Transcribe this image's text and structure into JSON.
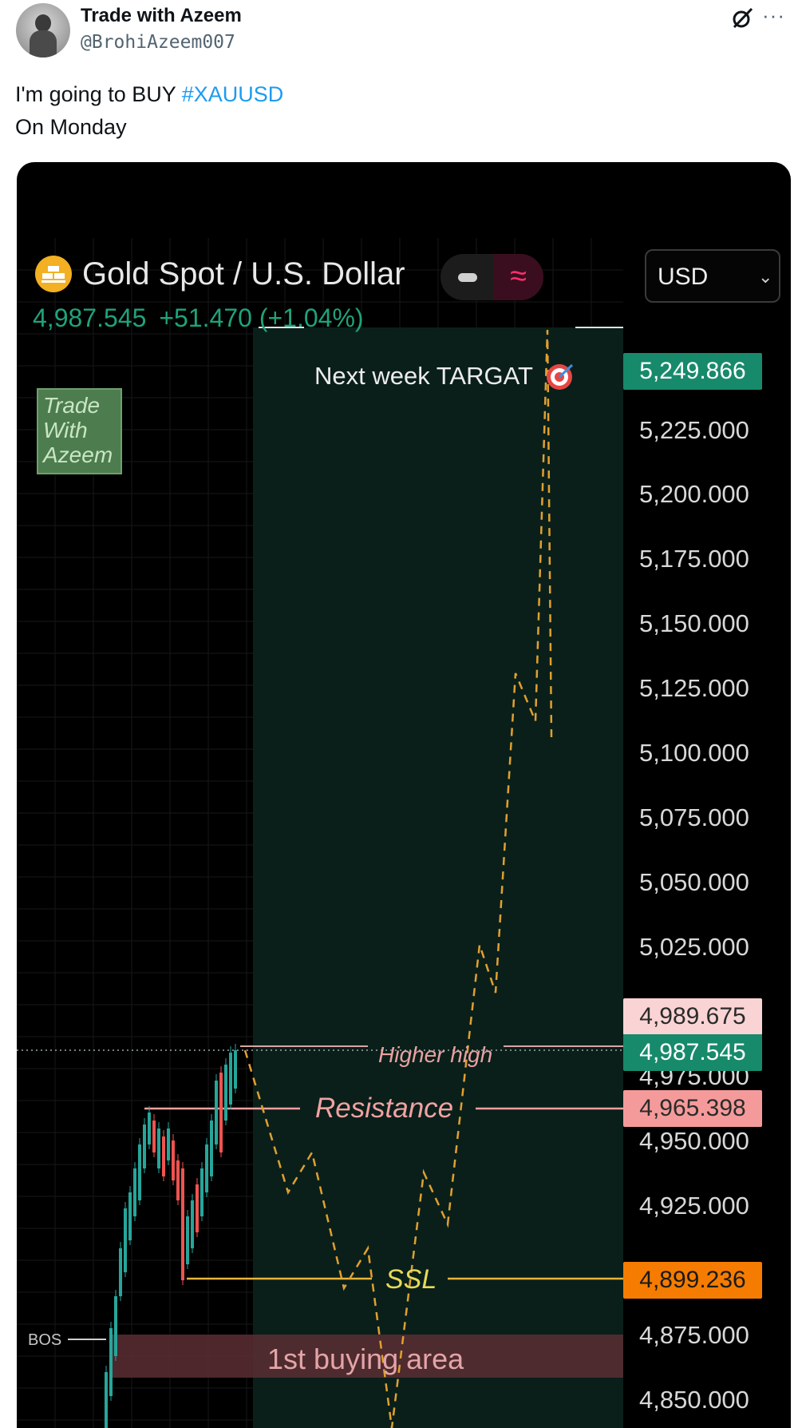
{
  "tweet": {
    "author_name": "Trade with Azeem",
    "author_handle": "@BrohiAzeem007",
    "text_line1": "I'm going to BUY ",
    "hashtag": "#XAUUSD",
    "text_line2": "On Monday",
    "more_glyph": "···"
  },
  "chart": {
    "symbol_title": "Gold Spot / U.S. Dollar",
    "last_price": "4,987.545",
    "change": "+51.470 (+1.04%)",
    "currency": "USD",
    "currency_chevron": "⌄",
    "toggle_glyph": "≈",
    "watermark": [
      "Trade",
      "With",
      "Azeem"
    ],
    "annotations": {
      "target": "Next week TARGAT",
      "higher_high": "Higher high",
      "resistance": "Resistance",
      "ssl": "SSL",
      "bos": "BOS",
      "buying_area": "1st buying area"
    },
    "axis_ticks": [
      "5,225.000",
      "5,200.000",
      "5,175.000",
      "5,150.000",
      "5,125.000",
      "5,100.000",
      "5,075.000",
      "5,050.000",
      "5,025.000",
      "4,975.000",
      "4,950.000",
      "4,925.000",
      "4,875.000",
      "4,850.000"
    ],
    "price_tags": {
      "target": "5,249.866",
      "high": "4,989.675",
      "last": "4,987.545",
      "resistance": "4,965.398",
      "ssl": "4,899.236"
    },
    "colors": {
      "up": "#26a69a",
      "down": "#ef5350",
      "target_tag": "#178a6c",
      "resistance_tag": "#f59a9a",
      "ssl_tag": "#f57c00",
      "zone": "#0a1f1a",
      "projection": "#e0a030"
    }
  }
}
